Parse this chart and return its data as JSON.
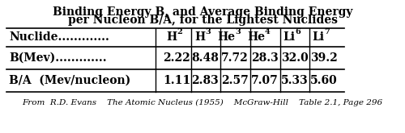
{
  "title_line1": "Binding Energy B, and Average Binding Energy",
  "title_line2": "per Nucleon B/A, for the Lightest Nuclides",
  "col_headers": [
    [
      "H",
      "2"
    ],
    [
      "H",
      "3"
    ],
    [
      "He",
      "3"
    ],
    [
      "He",
      "4"
    ],
    [
      "Li",
      "6"
    ],
    [
      "Li",
      "7"
    ]
  ],
  "row0_label": "Nuclide.............",
  "row1_label": "B(Mev).............",
  "row2_label": "B/A  (Mev/nucleon)",
  "row1_values": [
    "2.22",
    "8.48",
    "7.72",
    "28.3",
    "32.0",
    "39.2"
  ],
  "row2_values": [
    "1.11",
    "2.83",
    "2.57",
    "7.07",
    "5.33",
    "5.60"
  ],
  "footnote": "From  R.D. Evans    The Atomic Nucleus (1955)    McGraw-Hill    Table 2.1, Page 296",
  "title_fontsize": 10,
  "table_fontsize": 10,
  "footnote_fontsize": 7.5
}
